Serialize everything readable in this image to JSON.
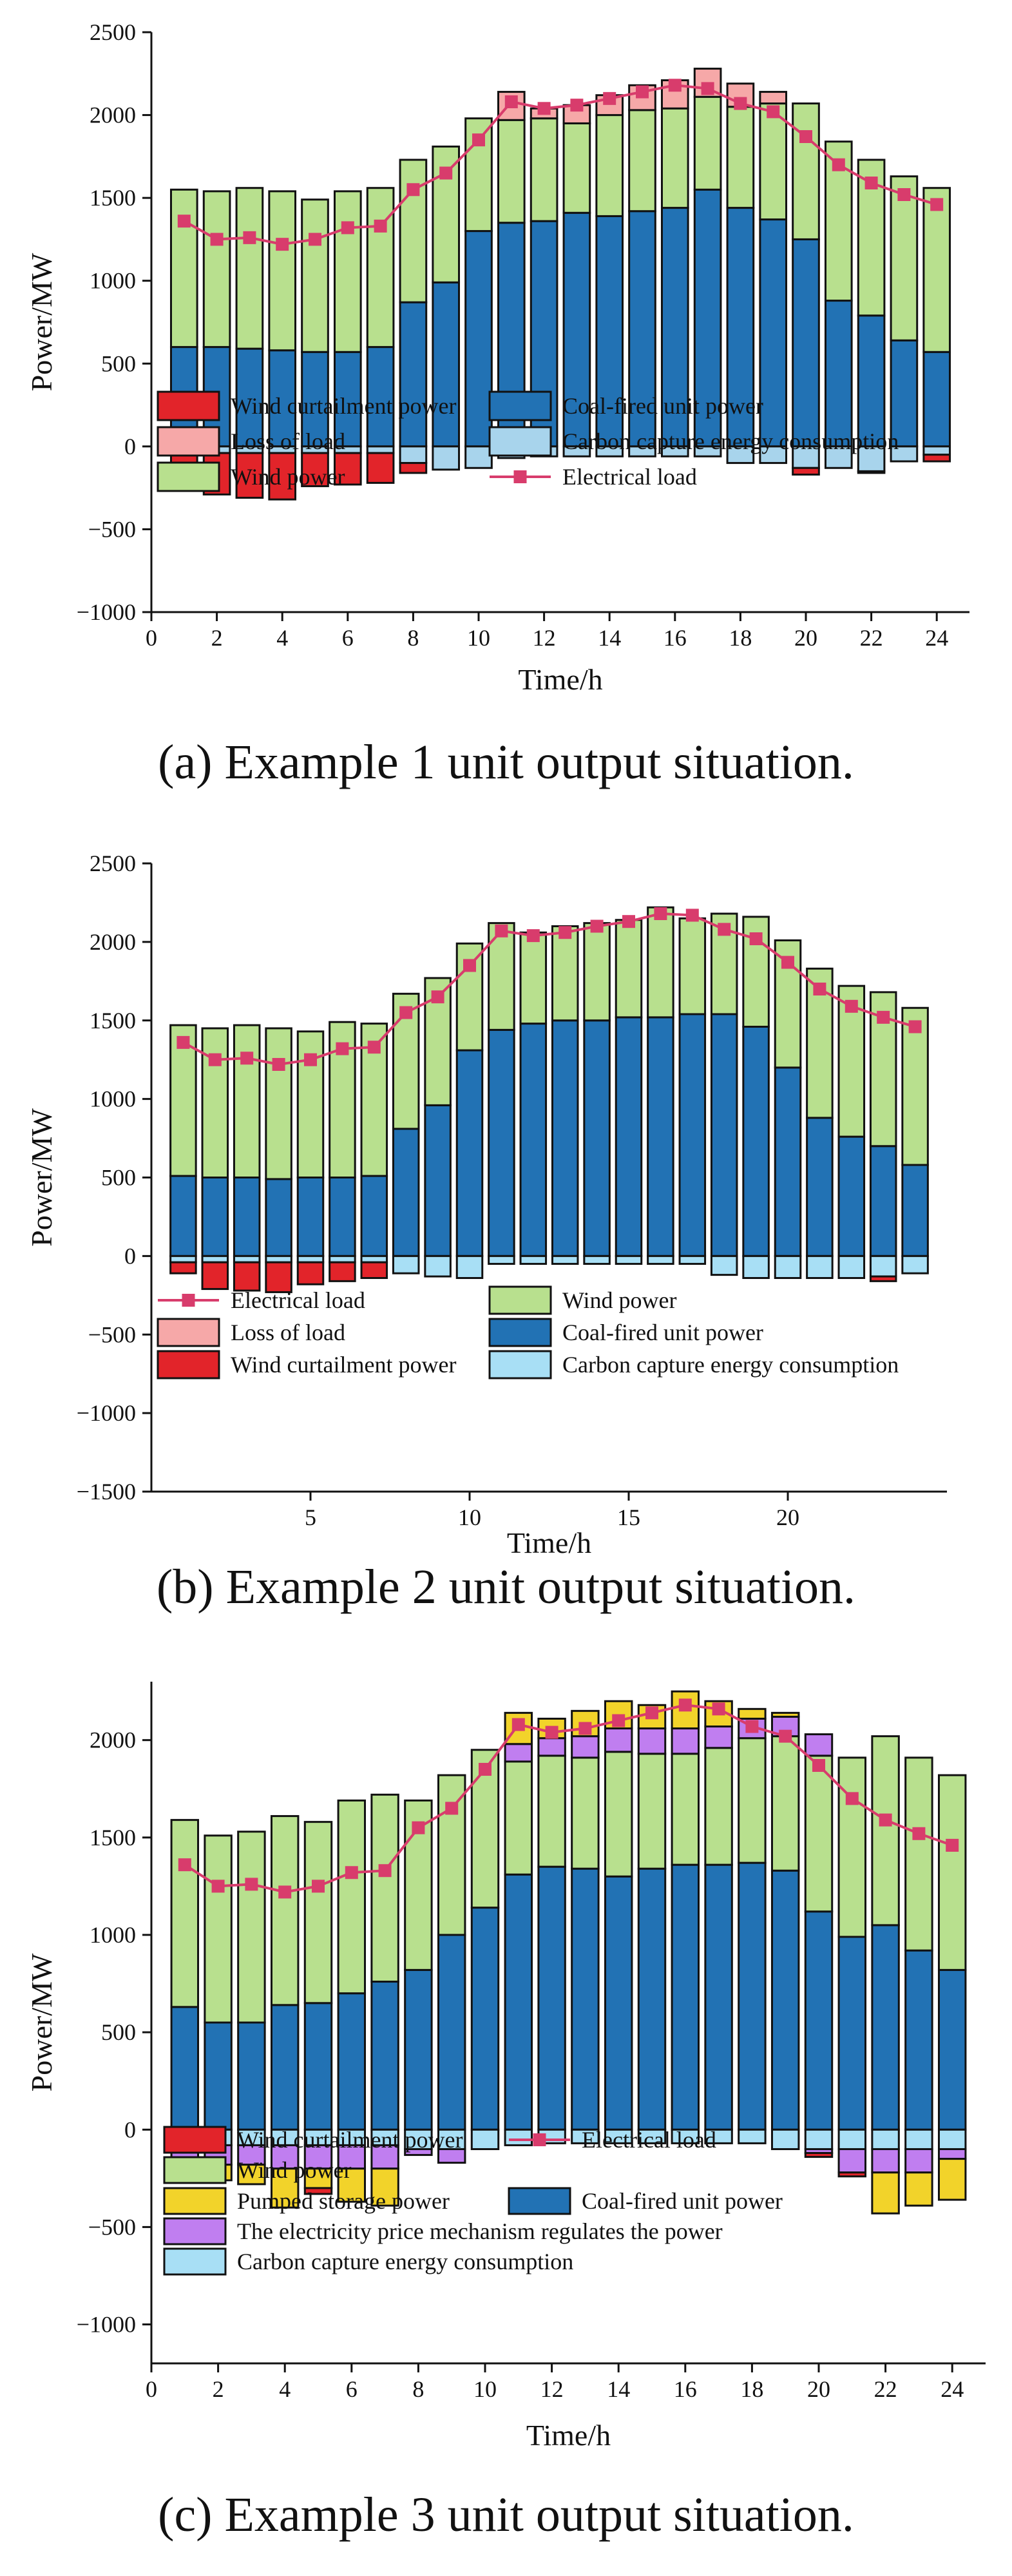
{
  "chart_data": [
    {
      "type": "bar",
      "id": "a",
      "caption_prefix": "(a)",
      "caption_text": "Example 1 unit output situation.",
      "xlabel": "Time/h",
      "ylabel": "Power/MW",
      "xlim": [
        0,
        25
      ],
      "ylim": [
        -1000,
        2500
      ],
      "xticks": [
        0,
        2,
        4,
        6,
        8,
        10,
        12,
        14,
        16,
        18,
        20,
        22,
        24
      ],
      "yticks": [
        -1000,
        -500,
        0,
        500,
        1000,
        1500,
        2000,
        2500
      ],
      "x": [
        1,
        2,
        3,
        4,
        5,
        6,
        7,
        8,
        9,
        10,
        11,
        12,
        13,
        14,
        15,
        16,
        17,
        18,
        19,
        20,
        21,
        22,
        23,
        24
      ],
      "positive_stack": [
        "Coal-fired unit power",
        "Wind power",
        "Loss of load"
      ],
      "negative_stack": [
        "Carbon capture energy consumption",
        "Wind curtailment power"
      ],
      "series": [
        {
          "name": "Coal-fired unit power",
          "color": "#2272b4",
          "values": [
            600,
            600,
            590,
            580,
            570,
            570,
            600,
            870,
            990,
            1300,
            1350,
            1360,
            1410,
            1390,
            1420,
            1440,
            1550,
            1440,
            1370,
            1250,
            880,
            790,
            640,
            570
          ]
        },
        {
          "name": "Wind power",
          "color": "#b8e08e",
          "values": [
            950,
            940,
            970,
            960,
            920,
            970,
            960,
            860,
            820,
            680,
            620,
            620,
            540,
            610,
            610,
            600,
            560,
            610,
            700,
            820,
            960,
            940,
            990,
            990
          ]
        },
        {
          "name": "Loss of load",
          "color": "#f6a8a8",
          "values": [
            0,
            0,
            0,
            0,
            0,
            0,
            0,
            0,
            0,
            0,
            170,
            60,
            110,
            120,
            150,
            170,
            170,
            140,
            70,
            0,
            0,
            0,
            0,
            0
          ]
        },
        {
          "name": "Carbon capture energy consumption",
          "color": "#a8d4ec",
          "values": [
            -40,
            -40,
            -40,
            -40,
            -40,
            -40,
            -40,
            -100,
            -140,
            -130,
            -70,
            -60,
            -60,
            -60,
            -60,
            -60,
            -60,
            -100,
            -100,
            -130,
            -130,
            -150,
            -90,
            -50
          ]
        },
        {
          "name": "Wind curtailment power",
          "color": "#e2242a",
          "values": [
            -150,
            -250,
            -270,
            -280,
            -200,
            -190,
            -180,
            -60,
            0,
            0,
            0,
            0,
            0,
            0,
            0,
            0,
            0,
            0,
            0,
            -40,
            0,
            -10,
            0,
            -40
          ]
        },
        {
          "name": "Electrical load",
          "type": "line",
          "color": "#d83c6c",
          "values": [
            1360,
            1250,
            1260,
            1220,
            1250,
            1320,
            1330,
            1550,
            1650,
            1850,
            2080,
            2040,
            2060,
            2100,
            2140,
            2180,
            2160,
            2070,
            2020,
            1870,
            1700,
            1590,
            1520,
            1460
          ]
        }
      ],
      "legend": [
        {
          "label": "Wind curtailment power",
          "series": "Wind curtailment power",
          "kind": "bar"
        },
        {
          "label": "Coal-fired unit power",
          "series": "Coal-fired unit power",
          "kind": "bar"
        },
        {
          "label": "Loss of load",
          "series": "Loss of load",
          "kind": "bar"
        },
        {
          "label": "Carbon capture energy consumption",
          "series": "Carbon capture energy consumption",
          "kind": "bar"
        },
        {
          "label": "Wind power",
          "series": "Wind power",
          "kind": "bar"
        },
        {
          "label": "Electrical load",
          "series": "Electrical load",
          "kind": "line"
        }
      ]
    },
    {
      "type": "bar",
      "id": "b",
      "caption_prefix": "(b)",
      "caption_text": "Example 2 unit output situation.",
      "xlabel": "Time/h",
      "ylabel": "Power/MW",
      "xlim": [
        0,
        25
      ],
      "ylim": [
        -1500,
        2500
      ],
      "xticks": [
        5,
        10,
        15,
        20
      ],
      "yticks": [
        -1500,
        -1000,
        -500,
        0,
        500,
        1000,
        1500,
        2000,
        2500
      ],
      "x": [
        1,
        2,
        3,
        4,
        5,
        6,
        7,
        8,
        9,
        10,
        11,
        12,
        13,
        14,
        15,
        16,
        17,
        18,
        19,
        20,
        21,
        22,
        23,
        24
      ],
      "positive_stack": [
        "Coal-fired unit power",
        "Wind power",
        "Loss of load"
      ],
      "negative_stack": [
        "Carbon capture energy consumption",
        "Wind curtailment power"
      ],
      "series": [
        {
          "name": "Coal-fired unit power",
          "color": "#2272b4",
          "values": [
            510,
            500,
            500,
            490,
            500,
            500,
            510,
            810,
            960,
            1310,
            1440,
            1480,
            1500,
            1500,
            1520,
            1520,
            1540,
            1540,
            1460,
            1200,
            880,
            760,
            700,
            580
          ]
        },
        {
          "name": "Wind power",
          "color": "#b8e08e",
          "values": [
            960,
            950,
            970,
            960,
            930,
            990,
            970,
            860,
            810,
            680,
            680,
            580,
            600,
            620,
            620,
            700,
            610,
            640,
            700,
            810,
            950,
            960,
            980,
            1000
          ]
        },
        {
          "name": "Loss of load",
          "color": "#f6a8a8",
          "values": [
            0,
            0,
            0,
            0,
            0,
            0,
            0,
            0,
            0,
            0,
            0,
            0,
            0,
            0,
            0,
            0,
            0,
            0,
            0,
            0,
            0,
            0,
            0,
            0
          ]
        },
        {
          "name": "Carbon capture energy consumption",
          "color": "#a8dff5",
          "values": [
            -40,
            -40,
            -40,
            -40,
            -40,
            -40,
            -40,
            -110,
            -130,
            -140,
            -50,
            -50,
            -50,
            -50,
            -50,
            -50,
            -50,
            -120,
            -140,
            -140,
            -140,
            -140,
            -130,
            -110
          ]
        },
        {
          "name": "Wind curtailment power",
          "color": "#e2242a",
          "values": [
            -70,
            -170,
            -180,
            -190,
            -140,
            -120,
            -100,
            0,
            0,
            0,
            0,
            0,
            0,
            0,
            0,
            0,
            0,
            0,
            0,
            0,
            0,
            0,
            -30,
            0
          ]
        },
        {
          "name": "Electrical load",
          "type": "line",
          "color": "#d83c6c",
          "values": [
            1360,
            1250,
            1260,
            1220,
            1250,
            1320,
            1330,
            1550,
            1650,
            1850,
            2070,
            2040,
            2060,
            2100,
            2130,
            2180,
            2170,
            2080,
            2020,
            1870,
            1700,
            1590,
            1520,
            1460
          ]
        }
      ],
      "legend": [
        {
          "label": "Electrical load",
          "series": "Electrical load",
          "kind": "line"
        },
        {
          "label": "Wind power",
          "series": "Wind power",
          "kind": "bar"
        },
        {
          "label": "Loss of load",
          "series": "Loss of load",
          "kind": "bar"
        },
        {
          "label": "Coal-fired unit power",
          "series": "Coal-fired unit power",
          "kind": "bar"
        },
        {
          "label": "Wind curtailment power",
          "series": "Wind curtailment power",
          "kind": "bar"
        },
        {
          "label": "Carbon capture energy consumption",
          "series": "Carbon capture energy consumption",
          "kind": "bar"
        }
      ]
    },
    {
      "type": "bar",
      "id": "c",
      "caption_prefix": "(c)",
      "caption_text": "Example 3 unit output situation.",
      "xlabel": "Time/h",
      "ylabel": "Power/MW",
      "xlim": [
        0,
        25
      ],
      "ylim": [
        -1200,
        2300
      ],
      "xticks": [
        0,
        2,
        4,
        6,
        8,
        10,
        12,
        14,
        16,
        18,
        20,
        22,
        24
      ],
      "yticks": [
        -1000,
        -500,
        0,
        500,
        1000,
        1500,
        2000
      ],
      "x": [
        1,
        2,
        3,
        4,
        5,
        6,
        7,
        8,
        9,
        10,
        11,
        12,
        13,
        14,
        15,
        16,
        17,
        18,
        19,
        20,
        21,
        22,
        23,
        24
      ],
      "positive_stack": [
        "Coal-fired unit power",
        "Wind power",
        "The electricity price mechanism regulates the power",
        "Pumped storage power",
        "Loss of load"
      ],
      "negative_stack": [
        "Carbon capture energy consumption",
        "The electricity price mechanism regulates the power",
        "Pumped storage power",
        "Wind curtailment power"
      ],
      "series": [
        {
          "name": "Coal-fired unit power",
          "color": "#2272b4",
          "values": [
            630,
            550,
            550,
            640,
            650,
            700,
            760,
            820,
            1000,
            1140,
            1310,
            1350,
            1340,
            1300,
            1340,
            1360,
            1360,
            1370,
            1330,
            1120,
            990,
            1050,
            920,
            820
          ]
        },
        {
          "name": "Wind power",
          "color": "#b8e08e",
          "values": [
            960,
            960,
            980,
            970,
            930,
            990,
            960,
            870,
            820,
            810,
            580,
            570,
            570,
            640,
            590,
            570,
            600,
            640,
            690,
            800,
            920,
            970,
            990,
            1000
          ]
        },
        {
          "name": "The electricity price mechanism regulates the power",
          "color": "#c07ef0",
          "values": [
            0,
            0,
            0,
            0,
            0,
            0,
            0,
            0,
            0,
            0,
            90,
            90,
            110,
            120,
            130,
            130,
            110,
            100,
            100,
            110,
            0,
            0,
            0,
            0
          ]
        },
        {
          "name": "Pumped storage power",
          "color": "#f2d32a",
          "values": [
            0,
            0,
            0,
            0,
            0,
            0,
            0,
            0,
            0,
            0,
            160,
            100,
            130,
            140,
            120,
            190,
            130,
            50,
            20,
            0,
            0,
            0,
            0,
            0
          ]
        },
        {
          "name": "Loss of load",
          "color": "#f6a8a8",
          "values": [
            0,
            0,
            0,
            0,
            0,
            0,
            0,
            0,
            0,
            0,
            0,
            0,
            0,
            0,
            0,
            0,
            0,
            0,
            0,
            0,
            0,
            0,
            0,
            0
          ]
        },
        {
          "name": "Carbon capture energy consumption",
          "color": "#a8dff5",
          "values": [
            -80,
            -80,
            -80,
            -80,
            -80,
            -80,
            -80,
            -100,
            -100,
            -100,
            -80,
            -70,
            -70,
            -70,
            -70,
            -70,
            -70,
            -70,
            -100,
            -100,
            -100,
            -100,
            -100,
            -100
          ]
        },
        {
          "name": "The electricity price mechanism regulates the power",
          "color": "#c07ef0",
          "values": [
            -100,
            -100,
            -100,
            -120,
            -120,
            -120,
            -120,
            -30,
            -70,
            0,
            0,
            0,
            0,
            0,
            0,
            0,
            0,
            0,
            0,
            -20,
            -120,
            -120,
            -120,
            -50
          ]
        },
        {
          "name": "Pumped storage power",
          "color": "#f2d32a",
          "values": [
            -80,
            -80,
            -100,
            -200,
            -100,
            -170,
            -190,
            0,
            0,
            0,
            0,
            0,
            0,
            0,
            0,
            0,
            0,
            0,
            0,
            0,
            0,
            -210,
            -170,
            -210
          ]
        },
        {
          "name": "Wind curtailment power",
          "color": "#e2242a",
          "values": [
            0,
            0,
            0,
            0,
            -30,
            0,
            0,
            0,
            0,
            0,
            0,
            0,
            0,
            0,
            0,
            0,
            0,
            0,
            0,
            -20,
            -20,
            0,
            0,
            0
          ]
        },
        {
          "name": "Electrical load",
          "type": "line",
          "color": "#d83c6c",
          "values": [
            1360,
            1250,
            1260,
            1220,
            1250,
            1320,
            1330,
            1550,
            1650,
            1850,
            2080,
            2040,
            2060,
            2100,
            2140,
            2180,
            2160,
            2070,
            2020,
            1870,
            1700,
            1590,
            1520,
            1460
          ]
        }
      ],
      "legend": [
        {
          "label": "Wind curtailment power",
          "series": "Wind curtailment power",
          "kind": "bar"
        },
        {
          "label": "Electrical load",
          "series": "Electrical load",
          "kind": "line"
        },
        {
          "label": "Wind power",
          "series": "Wind power",
          "kind": "bar"
        },
        {
          "label": "Pumped storage power",
          "series": "Pumped storage power",
          "kind": "bar"
        },
        {
          "label": "Coal-fired unit power",
          "series": "Coal-fired unit power",
          "kind": "bar"
        },
        {
          "label": "The electricity price mechanism regulates the power",
          "series": "The electricity price mechanism regulates the power",
          "kind": "bar"
        },
        {
          "label": "Carbon capture energy consumption",
          "series": "Carbon capture energy consumption",
          "kind": "bar"
        }
      ]
    }
  ]
}
